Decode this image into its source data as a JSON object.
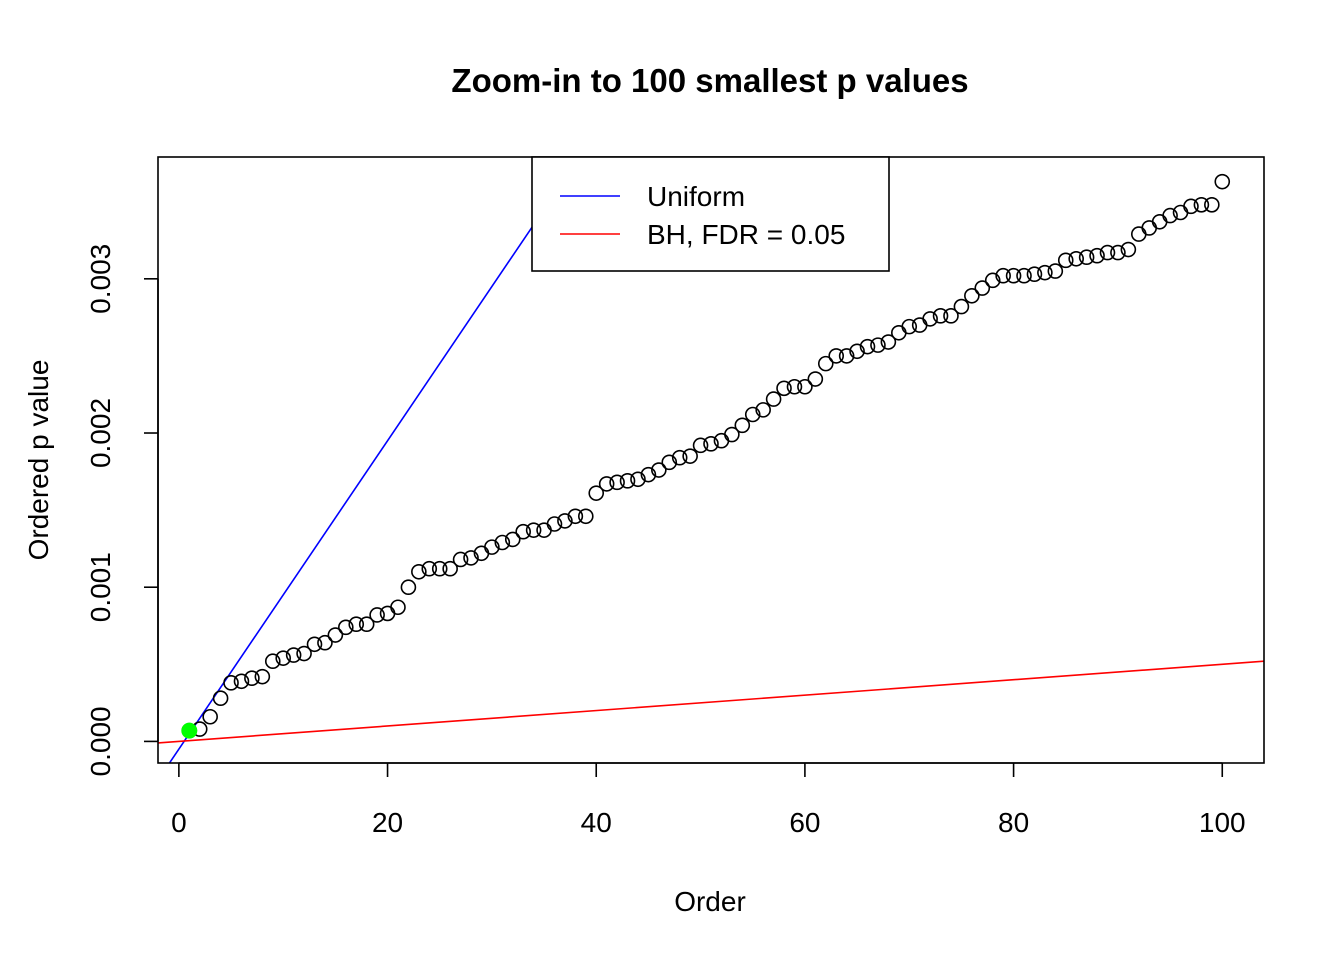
{
  "chart_data": {
    "type": "scatter",
    "title": "Zoom-in to 100 smallest p values",
    "xlabel": "Order",
    "ylabel": "Ordered p value",
    "xlim": [
      -2,
      104
    ],
    "ylim": [
      -0.00014,
      0.00379
    ],
    "xticks": [
      0,
      20,
      40,
      60,
      80,
      100
    ],
    "xtick_labels": [
      "0",
      "20",
      "40",
      "60",
      "80",
      "100"
    ],
    "yticks": [
      0.0,
      0.001,
      0.002,
      0.003
    ],
    "ytick_labels": [
      "0.000",
      "0.001",
      "0.002",
      "0.003"
    ],
    "grid": false,
    "legend_position": "top",
    "legend": [
      {
        "label": "Uniform",
        "color": "#0000ff"
      },
      {
        "label": "BH, FDR = 0.05",
        "color": "#ff0000"
      }
    ],
    "series": [
      {
        "kind": "points",
        "x": [
          1,
          2,
          3,
          4,
          5,
          6,
          7,
          8,
          9,
          10,
          11,
          12,
          13,
          14,
          15,
          16,
          17,
          18,
          19,
          20,
          21,
          22,
          23,
          24,
          25,
          26,
          27,
          28,
          29,
          30,
          31,
          32,
          33,
          34,
          35,
          36,
          37,
          38,
          39,
          40,
          41,
          42,
          43,
          44,
          45,
          46,
          47,
          48,
          49,
          50,
          51,
          52,
          53,
          54,
          55,
          56,
          57,
          58,
          59,
          60,
          61,
          62,
          63,
          64,
          65,
          66,
          67,
          68,
          69,
          70,
          71,
          72,
          73,
          74,
          75,
          76,
          77,
          78,
          79,
          80,
          81,
          82,
          83,
          84,
          85,
          86,
          87,
          88,
          89,
          90,
          91,
          92,
          93,
          94,
          95,
          96,
          97,
          98,
          99,
          100
        ],
        "y": [
          7e-05,
          8e-05,
          0.00016,
          0.00028,
          0.00038,
          0.00039,
          0.00041,
          0.00042,
          0.00052,
          0.00054,
          0.00056,
          0.00057,
          0.00063,
          0.00064,
          0.00069,
          0.00074,
          0.00076,
          0.00076,
          0.00082,
          0.00083,
          0.00087,
          0.001,
          0.0011,
          0.00112,
          0.00112,
          0.00112,
          0.00118,
          0.00119,
          0.00122,
          0.00126,
          0.00129,
          0.00131,
          0.00136,
          0.00137,
          0.00137,
          0.00141,
          0.00143,
          0.00146,
          0.00146,
          0.00161,
          0.00167,
          0.00168,
          0.00169,
          0.0017,
          0.00173,
          0.00176,
          0.00181,
          0.00184,
          0.00185,
          0.00192,
          0.00193,
          0.00195,
          0.00199,
          0.00205,
          0.00212,
          0.00215,
          0.00222,
          0.00229,
          0.0023,
          0.0023,
          0.00235,
          0.00245,
          0.0025,
          0.0025,
          0.00253,
          0.00256,
          0.00257,
          0.00259,
          0.00265,
          0.00269,
          0.0027,
          0.00274,
          0.00276,
          0.00276,
          0.00282,
          0.00289,
          0.00294,
          0.00299,
          0.00302,
          0.00302,
          0.00302,
          0.00303,
          0.00304,
          0.00305,
          0.00312,
          0.00313,
          0.00314,
          0.00315,
          0.00317,
          0.00317,
          0.00319,
          0.00329,
          0.00333,
          0.00337,
          0.00341,
          0.00343,
          0.00347,
          0.00348,
          0.00348,
          0.00363
        ]
      },
      {
        "kind": "line",
        "name": "Uniform",
        "color": "#0000ff",
        "slope": 0.0001,
        "intercept": -5e-05
      },
      {
        "kind": "line",
        "name": "BH, FDR = 0.05",
        "color": "#ff0000",
        "slope": 5e-06,
        "intercept": 0
      }
    ],
    "highlight": {
      "x": 1,
      "y": 7e-05,
      "color": "#00ff00"
    }
  }
}
